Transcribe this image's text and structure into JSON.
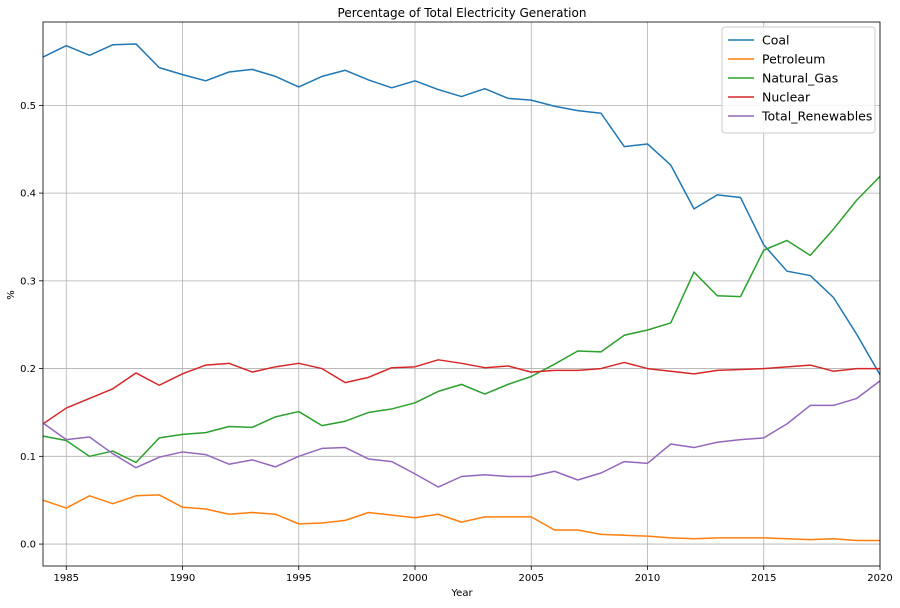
{
  "chart_data": {
    "type": "line",
    "title": "Percentage of Total Electricity Generation",
    "xlabel": "Year",
    "ylabel": "%",
    "xlim": [
      1984,
      2020
    ],
    "ylim": [
      -0.025,
      0.595
    ],
    "x_ticks": [
      1985,
      1990,
      1995,
      2000,
      2005,
      2010,
      2015,
      2020
    ],
    "y_ticks": [
      0.0,
      0.1,
      0.2,
      0.3,
      0.4,
      0.5
    ],
    "y_tick_labels": [
      "0.0",
      "0.1",
      "0.2",
      "0.3",
      "0.4",
      "0.5"
    ],
    "grid": true,
    "legend_position": "top-right",
    "x": [
      1984,
      1985,
      1986,
      1987,
      1988,
      1989,
      1990,
      1991,
      1992,
      1993,
      1994,
      1995,
      1996,
      1997,
      1998,
      1999,
      2000,
      2001,
      2002,
      2003,
      2004,
      2005,
      2006,
      2007,
      2008,
      2009,
      2010,
      2011,
      2012,
      2013,
      2014,
      2015,
      2016,
      2017,
      2018,
      2019,
      2020
    ],
    "series": [
      {
        "name": "Coal",
        "color": "#1f77b4",
        "values": [
          0.555,
          0.568,
          0.557,
          0.569,
          0.57,
          0.543,
          0.535,
          0.528,
          0.538,
          0.541,
          0.533,
          0.521,
          0.533,
          0.54,
          0.529,
          0.52,
          0.528,
          0.518,
          0.51,
          0.519,
          0.508,
          0.506,
          0.499,
          0.494,
          0.491,
          0.453,
          0.456,
          0.432,
          0.382,
          0.398,
          0.395,
          0.341,
          0.311,
          0.306,
          0.281,
          0.239,
          0.193
        ]
      },
      {
        "name": "Petroleum",
        "color": "#ff7f0e",
        "values": [
          0.05,
          0.041,
          0.055,
          0.046,
          0.055,
          0.056,
          0.042,
          0.04,
          0.034,
          0.036,
          0.034,
          0.023,
          0.024,
          0.027,
          0.036,
          0.033,
          0.03,
          0.034,
          0.025,
          0.031,
          0.031,
          0.031,
          0.016,
          0.016,
          0.011,
          0.01,
          0.009,
          0.007,
          0.006,
          0.007,
          0.007,
          0.007,
          0.006,
          0.005,
          0.006,
          0.004,
          0.004
        ]
      },
      {
        "name": "Natural_Gas",
        "color": "#2ca02c",
        "values": [
          0.123,
          0.118,
          0.1,
          0.106,
          0.093,
          0.121,
          0.125,
          0.127,
          0.134,
          0.133,
          0.145,
          0.151,
          0.135,
          0.14,
          0.15,
          0.154,
          0.161,
          0.174,
          0.182,
          0.171,
          0.182,
          0.191,
          0.205,
          0.22,
          0.219,
          0.238,
          0.244,
          0.252,
          0.31,
          0.283,
          0.282,
          0.335,
          0.346,
          0.329,
          0.359,
          0.392,
          0.419
        ]
      },
      {
        "name": "Nuclear",
        "color": "#d62728",
        "values": [
          0.137,
          0.155,
          0.166,
          0.177,
          0.195,
          0.181,
          0.194,
          0.204,
          0.206,
          0.196,
          0.202,
          0.206,
          0.2,
          0.184,
          0.19,
          0.201,
          0.202,
          0.21,
          0.206,
          0.201,
          0.203,
          0.196,
          0.198,
          0.198,
          0.2,
          0.207,
          0.2,
          0.197,
          0.194,
          0.198,
          0.199,
          0.2,
          0.202,
          0.204,
          0.197,
          0.2,
          0.2
        ]
      },
      {
        "name": "Total_Renewables",
        "color": "#9467bd",
        "values": [
          0.138,
          0.119,
          0.122,
          0.103,
          0.087,
          0.099,
          0.105,
          0.102,
          0.091,
          0.096,
          0.088,
          0.1,
          0.109,
          0.11,
          0.097,
          0.094,
          0.08,
          0.065,
          0.077,
          0.079,
          0.077,
          0.077,
          0.083,
          0.073,
          0.081,
          0.094,
          0.092,
          0.114,
          0.11,
          0.116,
          0.119,
          0.121,
          0.137,
          0.158,
          0.158,
          0.166,
          0.186
        ]
      }
    ]
  }
}
